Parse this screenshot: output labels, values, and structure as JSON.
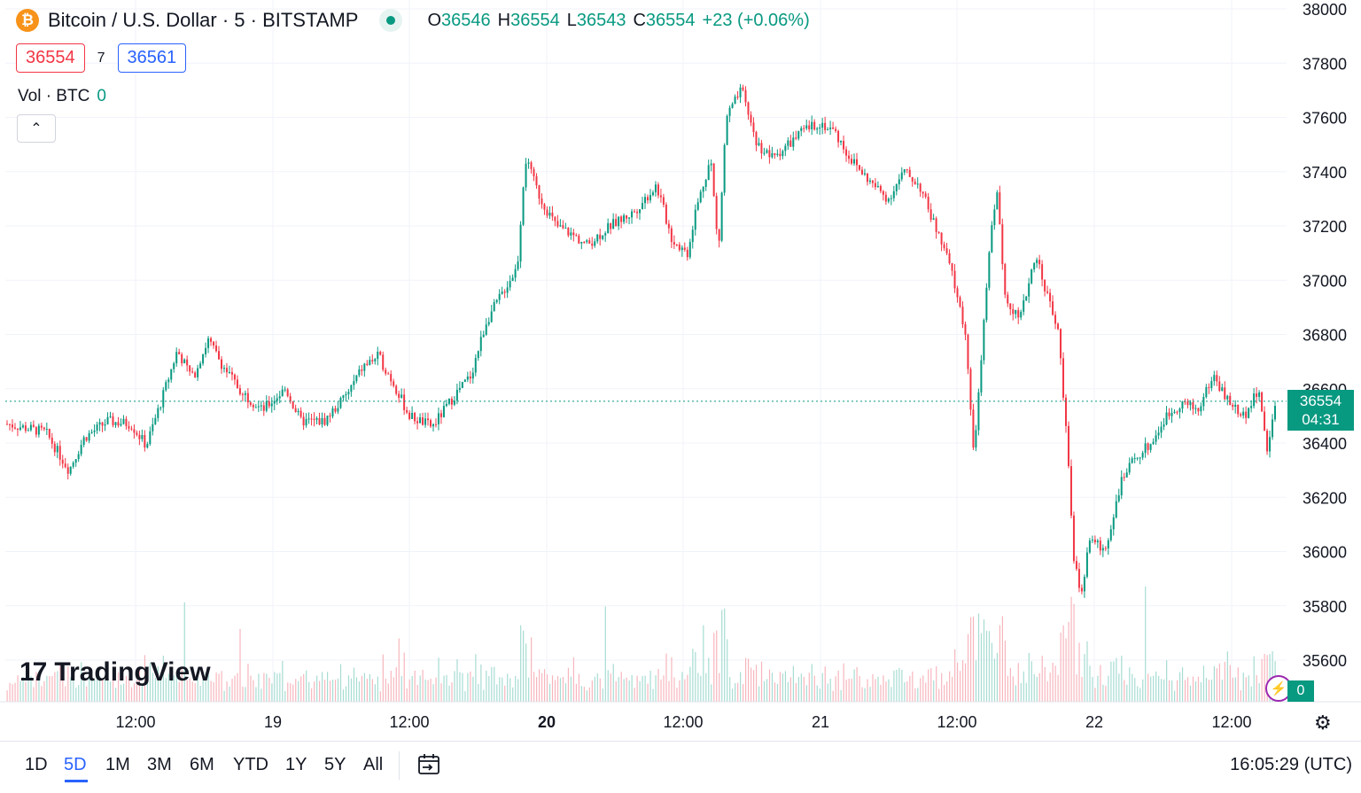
{
  "header": {
    "coin_icon": "bitcoin-icon",
    "coin_glyph": "₿",
    "symbol_title": "Bitcoin / U.S. Dollar · 5 · BITSTAMP",
    "ohlc": {
      "o_label": "O",
      "o": "36546",
      "h_label": "H",
      "h": "36554",
      "l_label": "L",
      "l": "36543",
      "c_label": "C",
      "c": "36554",
      "change": "+23 (+0.06%)"
    },
    "bid": "36554",
    "spread": "7",
    "ask": "36561",
    "volume_label": "Vol · BTC",
    "volume_value": "0",
    "collapse_glyph": "⌃"
  },
  "logo": {
    "mark": "17",
    "text": "TradingView"
  },
  "price_tag": {
    "price": "36554",
    "countdown": "04:31"
  },
  "volume_tag": "0",
  "colors": {
    "up": "#089981",
    "down": "#f23645",
    "accent": "#2962ff",
    "grid": "#f0f3fa"
  },
  "bottom": {
    "ranges": [
      "1D",
      "5D",
      "1M",
      "3M",
      "6M",
      "YTD",
      "1Y",
      "5Y",
      "All"
    ],
    "active_range": "5D",
    "clock": "16:05:29 (UTC)"
  },
  "chart_data": {
    "type": "candlestick",
    "title": "Bitcoin / U.S. Dollar · 5 · BITSTAMP",
    "interval": "5 minutes",
    "ylim": [
      35500,
      38000
    ],
    "y_ticks": [
      38000,
      37800,
      37600,
      37400,
      37200,
      37000,
      36800,
      36600,
      36400,
      36200,
      36000,
      35800,
      35600
    ],
    "x_ticks": [
      "12:00",
      "19",
      "12:00",
      "20",
      "12:00",
      "21",
      "12:00",
      "22",
      "12:00"
    ],
    "x_tick_bold": "20",
    "last_price": 36554,
    "grid": true,
    "approx_close_path": [
      [
        0,
        36470
      ],
      [
        5,
        36440
      ],
      [
        8,
        36300
      ],
      [
        10,
        36420
      ],
      [
        13,
        36480
      ],
      [
        16,
        36470
      ],
      [
        18,
        36390
      ],
      [
        20,
        36560
      ],
      [
        22,
        36740
      ],
      [
        24,
        36640
      ],
      [
        26,
        36780
      ],
      [
        28,
        36680
      ],
      [
        30,
        36600
      ],
      [
        33,
        36520
      ],
      [
        36,
        36600
      ],
      [
        38,
        36480
      ],
      [
        41,
        36480
      ],
      [
        44,
        36580
      ],
      [
        46,
        36680
      ],
      [
        48,
        36720
      ],
      [
        50,
        36620
      ],
      [
        52,
        36500
      ],
      [
        55,
        36460
      ],
      [
        58,
        36580
      ],
      [
        60,
        36650
      ],
      [
        62,
        36850
      ],
      [
        64,
        36950
      ],
      [
        66,
        37050
      ],
      [
        67,
        37450
      ],
      [
        69,
        37300
      ],
      [
        71,
        37200
      ],
      [
        73,
        37170
      ],
      [
        75,
        37130
      ],
      [
        78,
        37200
      ],
      [
        81,
        37250
      ],
      [
        84,
        37350
      ],
      [
        86,
        37150
      ],
      [
        88,
        37100
      ],
      [
        89,
        37250
      ],
      [
        91,
        37450
      ],
      [
        92,
        37100
      ],
      [
        93,
        37600
      ],
      [
        95,
        37700
      ],
      [
        97,
        37500
      ],
      [
        99,
        37450
      ],
      [
        101,
        37500
      ],
      [
        103,
        37550
      ],
      [
        105,
        37580
      ],
      [
        107,
        37550
      ],
      [
        109,
        37450
      ],
      [
        112,
        37350
      ],
      [
        114,
        37300
      ],
      [
        116,
        37400
      ],
      [
        118,
        37350
      ],
      [
        120,
        37200
      ],
      [
        122,
        37050
      ],
      [
        124,
        36800
      ],
      [
        125,
        36350
      ],
      [
        126,
        36700
      ],
      [
        127,
        37100
      ],
      [
        128,
        37350
      ],
      [
        129,
        36950
      ],
      [
        131,
        36850
      ],
      [
        133,
        37100
      ],
      [
        135,
        36900
      ],
      [
        136,
        36800
      ],
      [
        137,
        36450
      ],
      [
        138,
        35950
      ],
      [
        139,
        35850
      ],
      [
        140,
        36050
      ],
      [
        142,
        36000
      ],
      [
        144,
        36250
      ],
      [
        146,
        36350
      ],
      [
        148,
        36400
      ],
      [
        150,
        36500
      ],
      [
        152,
        36550
      ],
      [
        154,
        36520
      ],
      [
        156,
        36650
      ],
      [
        158,
        36550
      ],
      [
        160,
        36500
      ],
      [
        162,
        36600
      ],
      [
        163,
        36350
      ],
      [
        164,
        36554
      ]
    ]
  }
}
